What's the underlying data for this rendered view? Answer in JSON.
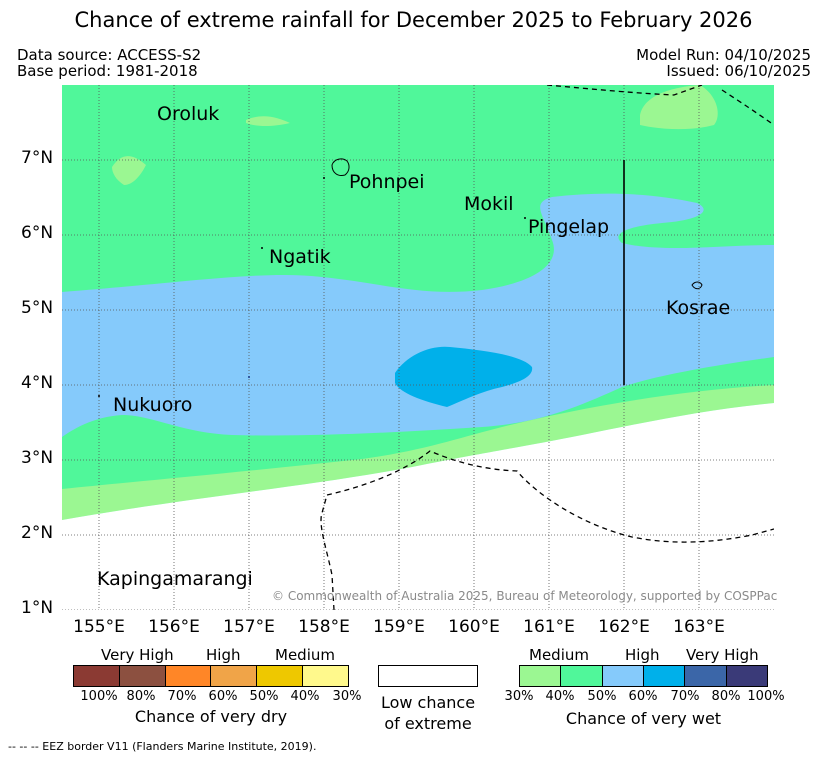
{
  "title": "Chance of extreme rainfall for December 2025 to February 2026",
  "meta": {
    "data_source": "Data source: ACCESS-S2",
    "base_period": "Base period: 1981-2018",
    "model_run": "Model Run: 04/10/2025",
    "issued": "Issued: 06/10/2025"
  },
  "map": {
    "lat_ticks": [
      "7°N",
      "6°N",
      "5°N",
      "4°N",
      "3°N",
      "2°N",
      "1°N"
    ],
    "lon_ticks": [
      "155°E",
      "156°E",
      "157°E",
      "158°E",
      "159°E",
      "160°E",
      "161°E",
      "162°E",
      "163°E"
    ],
    "places": {
      "oroluk": "Oroluk",
      "pohnpei": "Pohnpei",
      "mokil": "Mokil",
      "pingelap": "Pingelap",
      "ngatik": "Ngatik",
      "kosrae": "Kosrae",
      "nukuoro": "Nukuoro",
      "kapingamarangi": "Kapingamarangi"
    },
    "copyright": "© Commonwealth of Australia 2025, Bureau of Meteorology, supported by COSPPac",
    "colors": {
      "medium_wet": "#9bf792",
      "medium_wet_2": "#50f79a",
      "high_wet": "#85cafb",
      "high_wet_2": "#00b0ea",
      "very_high_wet": "#3b66a8",
      "very_high_wet_2": "#3a3a78"
    }
  },
  "legend": {
    "dry": {
      "labels": {
        "very_high": "Very High",
        "high": "High",
        "medium": "Medium"
      },
      "colors": [
        "#8b3a33",
        "#8c5040",
        "#ff8627",
        "#f0a448",
        "#eec800",
        "#fff98c"
      ],
      "pcts": [
        "100%",
        "80%",
        "70%",
        "60%",
        "50%",
        "40%",
        "30%"
      ],
      "title": "Chance of very dry"
    },
    "low": {
      "line1": "Low chance",
      "line2": "of extreme"
    },
    "wet": {
      "labels": {
        "medium": "Medium",
        "high": "High",
        "very_high": "Very High"
      },
      "colors": [
        "#9bf792",
        "#50f79a",
        "#85cafb",
        "#00b0ea",
        "#3b66a8",
        "#3a3a78"
      ],
      "pcts": [
        "30%",
        "40%",
        "50%",
        "60%",
        "70%",
        "80%",
        "100%"
      ],
      "title": "Chance of very wet"
    }
  },
  "footnote": "--  --  -- EEZ border V11 (Flanders Marine Institute, 2019)."
}
